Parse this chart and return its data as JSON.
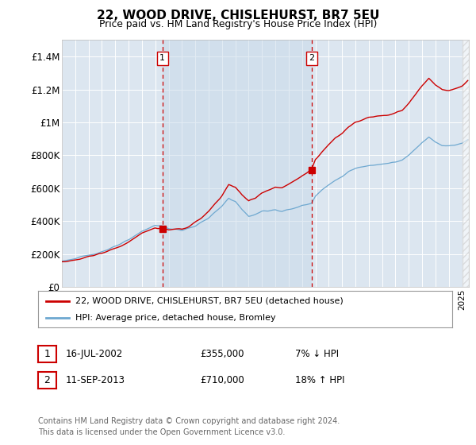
{
  "title": "22, WOOD DRIVE, CHISLEHURST, BR7 5EU",
  "subtitle": "Price paid vs. HM Land Registry's House Price Index (HPI)",
  "background_color": "#ffffff",
  "plot_bg_color": "#dce6f0",
  "plot_bg_between": "#cfdded",
  "grid_color": "#ffffff",
  "ylim": [
    0,
    1500000
  ],
  "yticks": [
    0,
    200000,
    400000,
    600000,
    800000,
    1000000,
    1200000,
    1400000
  ],
  "ytick_labels": [
    "£0",
    "£200K",
    "£400K",
    "£600K",
    "£800K",
    "£1M",
    "£1.2M",
    "£1.4M"
  ],
  "hpi_color": "#6ea8d0",
  "price_color": "#cc0000",
  "vline_color": "#cc0000",
  "sale1_year": 2002.54,
  "sale1_price": 355000,
  "sale2_year": 2013.71,
  "sale2_price": 710000,
  "legend1_label": "22, WOOD DRIVE, CHISLEHURST, BR7 5EU (detached house)",
  "legend2_label": "HPI: Average price, detached house, Bromley",
  "table_row1": [
    "1",
    "16-JUL-2002",
    "£355,000",
    "7% ↓ HPI"
  ],
  "table_row2": [
    "2",
    "11-SEP-2013",
    "£710,000",
    "18% ↑ HPI"
  ],
  "footer": "Contains HM Land Registry data © Crown copyright and database right 2024.\nThis data is licensed under the Open Government Licence v3.0.",
  "xstart": 1995,
  "xend": 2025.5
}
